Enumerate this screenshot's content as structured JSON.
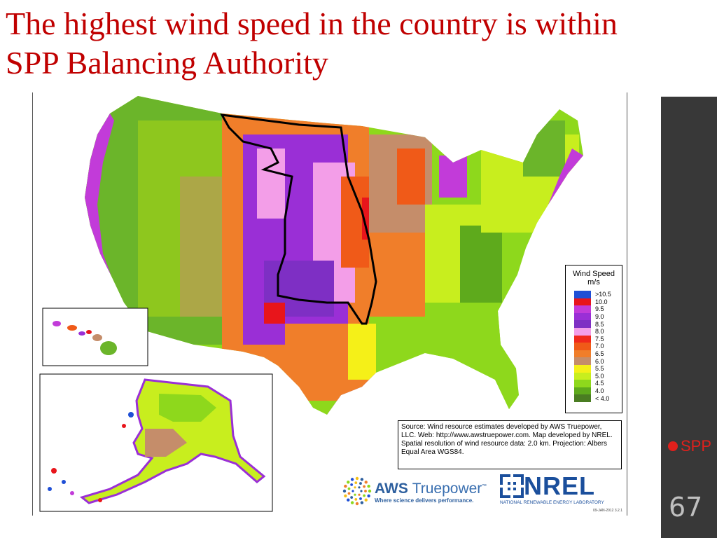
{
  "slide": {
    "title": "The highest wind speed in the country is within SPP Balancing Authority",
    "page_number": "67",
    "logo_text": "SPP"
  },
  "legend": {
    "title_line1": "Wind Speed",
    "title_line2": "m/s",
    "items": [
      {
        "label": ">10.5",
        "color": "#1f4fd6"
      },
      {
        "label": "10.0",
        "color": "#e8151b"
      },
      {
        "label": "9.5",
        "color": "#c23bd9"
      },
      {
        "label": "9.0",
        "color": "#9a2fd6"
      },
      {
        "label": "8.5",
        "color": "#7e2fc4"
      },
      {
        "label": "8.0",
        "color": "#f39ee8"
      },
      {
        "label": "7.5",
        "color": "#f0281c"
      },
      {
        "label": "7.0",
        "color": "#f05a18"
      },
      {
        "label": "6.5",
        "color": "#f07e2a"
      },
      {
        "label": "6.0",
        "color": "#c58d6a"
      },
      {
        "label": "5.5",
        "color": "#f5f018"
      },
      {
        "label": "5.0",
        "color": "#c8ee1e"
      },
      {
        "label": "4.5",
        "color": "#8ed81c"
      },
      {
        "label": "4.0",
        "color": "#5eaa1c"
      },
      {
        "label": "< 4.0",
        "color": "#4a7d22"
      }
    ]
  },
  "source_text": "Source: Wind resource estimates developed by AWS Truepower, LLC. Web: http://www.awstruepower.com. Map developed by NREL. Spatial resolution of wind resource data: 2.0 km. Projection: Albers Equal Area WGS84.",
  "aws_logo": {
    "name": "AWS",
    "name2": "Truepower",
    "tm": "™",
    "tagline": "Where science delivers performance."
  },
  "nrel_logo": {
    "name": "NREL",
    "subtitle": "NATIONAL RENEWABLE ENERGY LABORATORY"
  },
  "date_stamp": "09-JAN-2012 3.2.1"
}
